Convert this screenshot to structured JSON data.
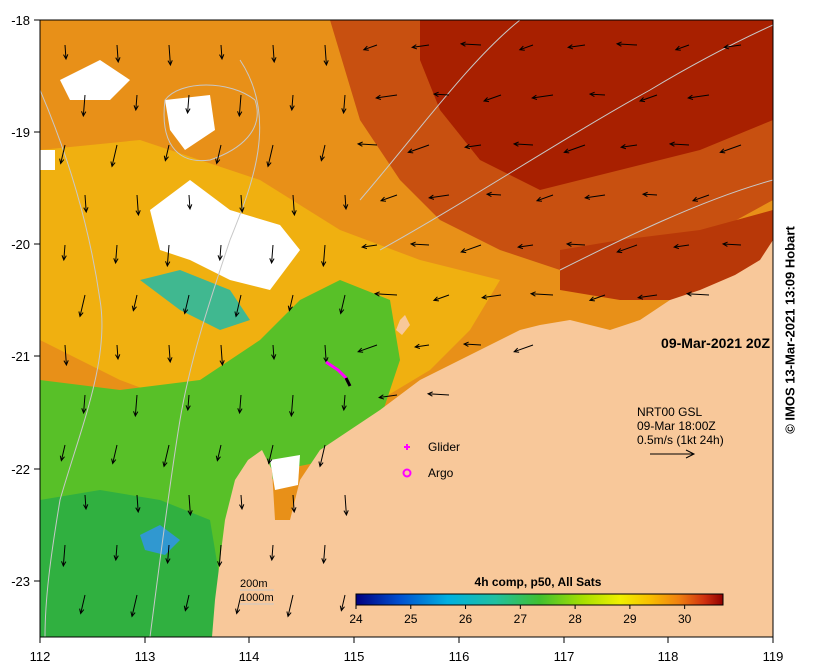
{
  "x_ticks": [
    "112",
    "113",
    "114",
    "115",
    "116",
    "117",
    "118",
    "119"
  ],
  "y_ticks": [
    "-18",
    "-19",
    "-20",
    "-21",
    "-22",
    "-23"
  ],
  "date_label": "09-Mar-2021 20Z",
  "current_legend": {
    "line1": "NRT00 GSL",
    "line2": "09-Mar 18:00Z",
    "line3": "0.5m/s (1kt 24h)"
  },
  "glider_label": "Glider",
  "argo_label": "Argo",
  "isobaths": {
    "shallow": "200m",
    "deep": "1000m"
  },
  "colorbar": {
    "title": "4h comp, p50, All Sats",
    "ticks": [
      "24",
      "25",
      "26",
      "27",
      "28",
      "29",
      "30"
    ],
    "range": [
      24,
      30.7
    ]
  },
  "credit": "© IMOS 13-Mar-2021 13:09 Hobart",
  "colors": {
    "land": "#f8c89a",
    "glider": "#ff00ff",
    "argo": "#ff00ff"
  }
}
